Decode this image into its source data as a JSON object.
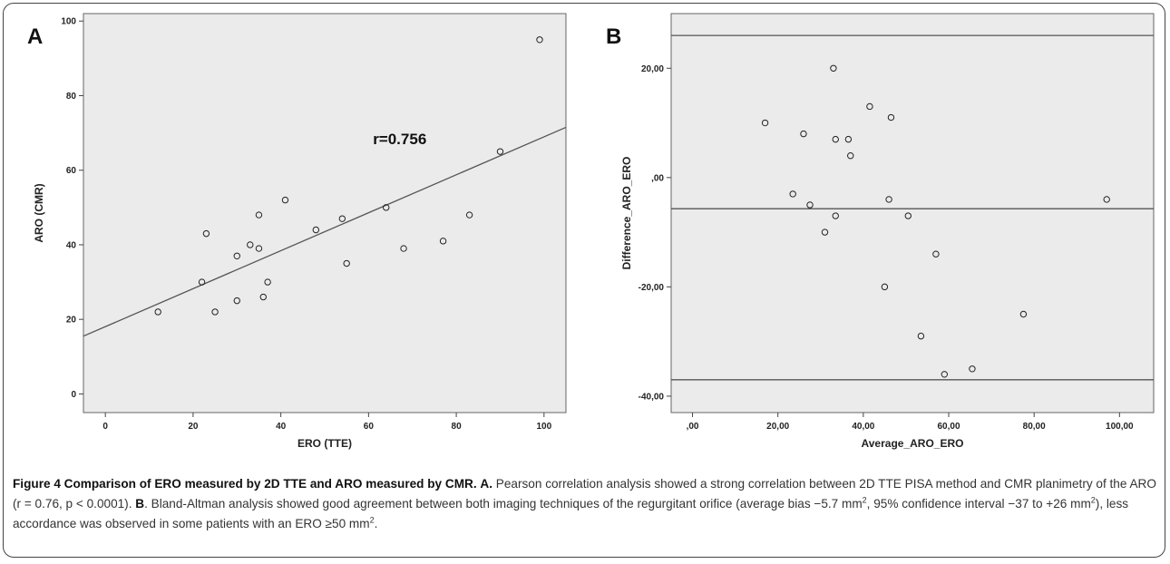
{
  "chart_data": [
    {
      "panel": "A",
      "type": "scatter",
      "xlabel": "ERO (TTE)",
      "ylabel": "ARO (CMR)",
      "xlim": [
        -5,
        105
      ],
      "ylim": [
        -5,
        102
      ],
      "xticks": [
        "0",
        "20",
        "40",
        "60",
        "80",
        "100"
      ],
      "yticks": [
        "0",
        "20",
        "40",
        "60",
        "80",
        "100"
      ],
      "annotation": "r=0.756",
      "grid": false,
      "points": [
        {
          "x": 12,
          "y": 22
        },
        {
          "x": 22,
          "y": 30
        },
        {
          "x": 23,
          "y": 43
        },
        {
          "x": 25,
          "y": 22
        },
        {
          "x": 30,
          "y": 37
        },
        {
          "x": 30,
          "y": 25
        },
        {
          "x": 33,
          "y": 40
        },
        {
          "x": 35,
          "y": 48
        },
        {
          "x": 35,
          "y": 39
        },
        {
          "x": 36,
          "y": 26
        },
        {
          "x": 37,
          "y": 30
        },
        {
          "x": 41,
          "y": 52
        },
        {
          "x": 48,
          "y": 44
        },
        {
          "x": 54,
          "y": 47
        },
        {
          "x": 55,
          "y": 35
        },
        {
          "x": 64,
          "y": 50
        },
        {
          "x": 68,
          "y": 39
        },
        {
          "x": 77,
          "y": 41
        },
        {
          "x": 83,
          "y": 48
        },
        {
          "x": 90,
          "y": 65
        },
        {
          "x": 99,
          "y": 95
        }
      ],
      "fit_line": {
        "x": [
          -5,
          105
        ],
        "y": [
          15.5,
          71.5
        ]
      }
    },
    {
      "panel": "B",
      "type": "scatter",
      "xlabel": "Average_ARO_ERO",
      "ylabel": "Difference_ARO_ERO",
      "xlim": [
        -5,
        108
      ],
      "ylim": [
        -43,
        30
      ],
      "xticks": [
        ",00",
        "20,00",
        "40,00",
        "60,00",
        "80,00",
        "100,00"
      ],
      "yticks": [
        "-40,00",
        "-20,00",
        ",00",
        "20,00"
      ],
      "grid": false,
      "points": [
        {
          "x": 17,
          "y": 10
        },
        {
          "x": 23.5,
          "y": -3
        },
        {
          "x": 26,
          "y": 8
        },
        {
          "x": 27.5,
          "y": -5
        },
        {
          "x": 31,
          "y": -10
        },
        {
          "x": 33,
          "y": 20
        },
        {
          "x": 33.5,
          "y": 7
        },
        {
          "x": 33.5,
          "y": -7
        },
        {
          "x": 36.5,
          "y": 7
        },
        {
          "x": 37,
          "y": 4
        },
        {
          "x": 41.5,
          "y": 13
        },
        {
          "x": 45,
          "y": -20
        },
        {
          "x": 46,
          "y": -4
        },
        {
          "x": 46.5,
          "y": 11
        },
        {
          "x": 50.5,
          "y": -7
        },
        {
          "x": 53.5,
          "y": -29
        },
        {
          "x": 57,
          "y": -14
        },
        {
          "x": 59,
          "y": -36
        },
        {
          "x": 65.5,
          "y": -35
        },
        {
          "x": 77.5,
          "y": -25
        },
        {
          "x": 97,
          "y": -4
        }
      ],
      "hlines": [
        26,
        -5.7,
        -37
      ]
    }
  ],
  "caption": {
    "title": "Figure 4 Comparison of ERO measured by 2D TTE and ARO measured by CMR.",
    "a_label": "A.",
    "a_text": "Pearson correlation analysis showed a strong correlation between 2D TTE PISA method and CMR planimetry of the ARO (r = 0.76, p < 0.0001).",
    "b_label": "B",
    "b_text_1": ". Bland-Altman analysis showed good agreement between both imaging techniques of the regurgitant orifice (average bias −5.7 mm",
    "b_text_2": ", 95% confidence interval −37 to +26 mm",
    "b_text_3": "), less accordance was observed in some patients with an ERO ≥50 mm",
    "b_text_4": ".",
    "sup": "2"
  },
  "colors": {
    "plot_bg": "#ebebeb",
    "line": "#555555",
    "marker": "#222222"
  }
}
